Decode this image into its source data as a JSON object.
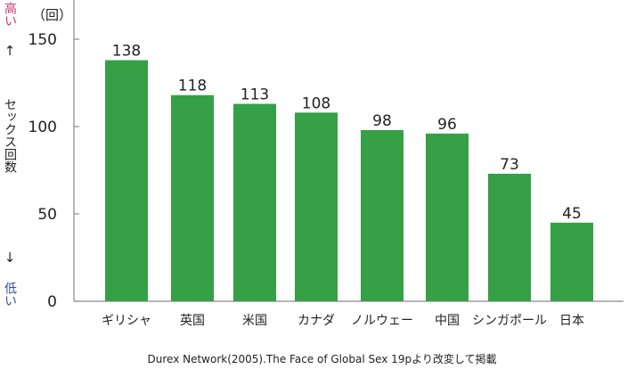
{
  "chart_data": {
    "type": "bar",
    "categories": [
      "ギリシャ",
      "英国",
      "米国",
      "カナダ",
      "ノルウェー",
      "中国",
      "シンガポール",
      "日本"
    ],
    "values": [
      138,
      118,
      113,
      108,
      98,
      96,
      73,
      45
    ],
    "ylim": [
      0,
      150
    ],
    "yticks": [
      0,
      50,
      100,
      150
    ],
    "grid": false,
    "bar_color": "#35a046",
    "unit": "（回）"
  },
  "y_axis": {
    "high_label": "高い",
    "low_label": "低い",
    "ylabel": "セックス回数",
    "up_arrow": "↑",
    "down_arrow": "↓"
  },
  "source_note": "Durex Network(2005).The Face of Global Sex 19pより改変して掲載",
  "colors": {
    "high": "#c3346a",
    "low": "#3a4c9b",
    "axis": "#8a8a8a",
    "text": "#222222"
  }
}
